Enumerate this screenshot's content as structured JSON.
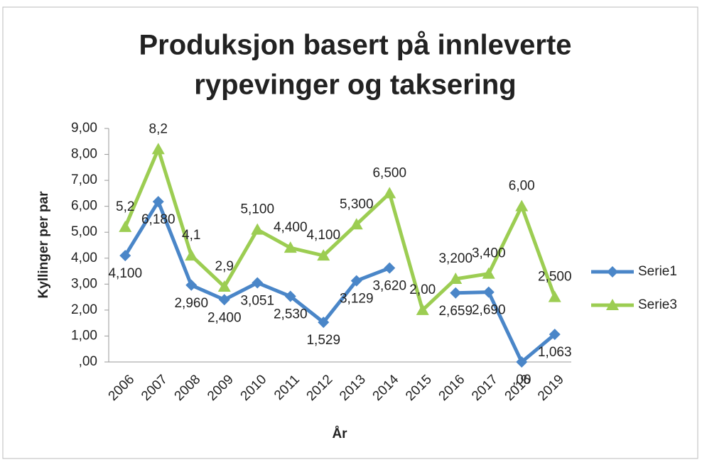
{
  "chart_data": {
    "type": "line",
    "title": [
      "Produksjon basert på innleverte",
      "rypevinger og taksering"
    ],
    "x_label": "År",
    "y_label": "Kyllinger per par",
    "categories": [
      "2006",
      "2007",
      "2008",
      "2009",
      "2010",
      "2011",
      "2012",
      "2013",
      "2014",
      "2015",
      "2016",
      "2017",
      "2018",
      "2019"
    ],
    "ylim": [
      0,
      9
    ],
    "yticks": [
      {
        "value": 0,
        "label": ",00"
      },
      {
        "value": 1,
        "label": "1,00"
      },
      {
        "value": 2,
        "label": "2,00"
      },
      {
        "value": 3,
        "label": "3,00"
      },
      {
        "value": 4,
        "label": "4,00"
      },
      {
        "value": 5,
        "label": "5,00"
      },
      {
        "value": 6,
        "label": "6,00"
      },
      {
        "value": 7,
        "label": "7,00"
      },
      {
        "value": 8,
        "label": "8,00"
      },
      {
        "value": 9,
        "label": "9,00"
      }
    ],
    "grid": false,
    "legend": "right",
    "series": [
      {
        "name": "Serie1",
        "color": "#4a86c8",
        "marker": "diamond",
        "values": [
          4.1,
          6.18,
          2.96,
          2.4,
          3.051,
          2.53,
          1.529,
          3.129,
          3.62,
          null,
          2.659,
          2.69,
          0,
          1.063
        ],
        "value_labels": [
          "4,100",
          "6,180",
          "2,960",
          "2,400",
          "3,051",
          "2,530",
          "1,529",
          "3,129",
          "3,620",
          null,
          "2,659",
          "2,690",
          ",00",
          "1,063"
        ]
      },
      {
        "name": "Serie3",
        "color": "#9ccd52",
        "marker": "triangle",
        "values": [
          5.2,
          8.2,
          4.1,
          2.9,
          5.1,
          4.4,
          4.1,
          5.3,
          6.5,
          2.0,
          3.2,
          3.4,
          6.0,
          2.5
        ],
        "value_labels": [
          "5,2",
          "8,2",
          "4,1",
          "2,9",
          "5,100",
          "4,400",
          "4,100",
          "5,300",
          "6,500",
          "2,00",
          "3,200",
          "3,400",
          "6,00",
          "2,500"
        ]
      }
    ]
  }
}
